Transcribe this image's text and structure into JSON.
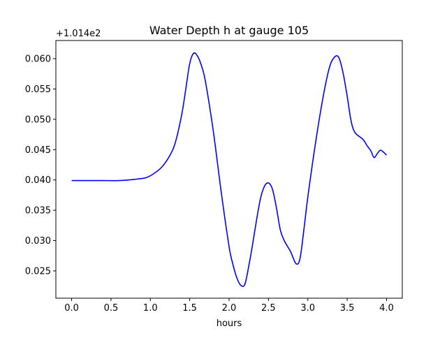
{
  "chart_data": {
    "type": "line",
    "title": "Water Depth h at gauge 105",
    "xlabel": "hours",
    "ylabel": "",
    "offset_text": "+1.014e2",
    "xlim": [
      -0.2,
      4.2
    ],
    "ylim": [
      0.0205,
      0.063
    ],
    "xticks": [
      0.0,
      0.5,
      1.0,
      1.5,
      2.0,
      2.5,
      3.0,
      3.5,
      4.0
    ],
    "xtick_labels": [
      "0.0",
      "0.5",
      "1.0",
      "1.5",
      "2.0",
      "2.5",
      "3.0",
      "3.5",
      "4.0"
    ],
    "yticks": [
      0.025,
      0.03,
      0.035,
      0.04,
      0.045,
      0.05,
      0.055,
      0.06
    ],
    "ytick_labels": [
      "0.025",
      "0.030",
      "0.035",
      "0.040",
      "0.045",
      "0.050",
      "0.055",
      "0.060"
    ],
    "grid": false,
    "series": [
      {
        "color": "#0000ff",
        "x": [
          0.0,
          0.3,
          0.4,
          0.6,
          0.8,
          0.95,
          1.05,
          1.15,
          1.25,
          1.32,
          1.4,
          1.45,
          1.5,
          1.55,
          1.6,
          1.65,
          1.7,
          1.8,
          1.9,
          2.0,
          2.05,
          2.1,
          2.15,
          2.2,
          2.25,
          2.3,
          2.35,
          2.4,
          2.45,
          2.5,
          2.55,
          2.6,
          2.65,
          2.7,
          2.78,
          2.85,
          2.9,
          2.95,
          3.0,
          3.1,
          3.2,
          3.28,
          3.35,
          3.4,
          3.45,
          3.5,
          3.55,
          3.6,
          3.7,
          3.75,
          3.8,
          3.84,
          3.88,
          3.92,
          3.96,
          4.0
        ],
        "y": [
          0.0399,
          0.0399,
          0.0399,
          0.0399,
          0.0401,
          0.0404,
          0.0411,
          0.0422,
          0.0441,
          0.0463,
          0.0509,
          0.055,
          0.0592,
          0.0609,
          0.0604,
          0.0588,
          0.0562,
          0.048,
          0.038,
          0.029,
          0.026,
          0.0238,
          0.0226,
          0.0228,
          0.0258,
          0.0295,
          0.0335,
          0.037,
          0.039,
          0.0395,
          0.0385,
          0.0355,
          0.0318,
          0.03,
          0.0282,
          0.0262,
          0.027,
          0.0318,
          0.0372,
          0.0463,
          0.0541,
          0.0588,
          0.0604,
          0.06,
          0.0575,
          0.0538,
          0.0497,
          0.0478,
          0.0467,
          0.0457,
          0.0448,
          0.0437,
          0.0443,
          0.0449,
          0.0446,
          0.0441
        ]
      }
    ]
  }
}
